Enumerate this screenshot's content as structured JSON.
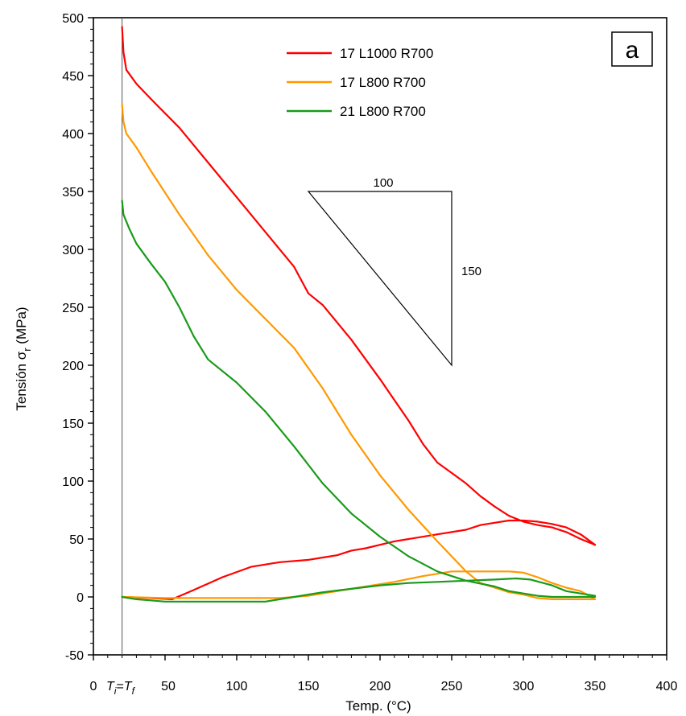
{
  "chart_data": {
    "type": "line",
    "panel_label": "a",
    "xlabel": "Temp. (°C)",
    "ylabel_main": "Tensión σ",
    "ylabel_sub": "r",
    "ylabel_unit": "(MPa)",
    "xlim": [
      0,
      400
    ],
    "ylim": [
      -50,
      500
    ],
    "xticks": [
      0,
      50,
      100,
      150,
      200,
      250,
      300,
      350,
      400
    ],
    "yticks": [
      -50,
      0,
      50,
      100,
      150,
      200,
      250,
      300,
      350,
      400,
      450,
      500
    ],
    "x_special_label": {
      "x": 20,
      "ti": "T",
      "ti_sub": "i",
      "eq": "=",
      "tf": "T",
      "tf_sub": "f"
    },
    "reference_line_x": 20,
    "legend_position": "top-center",
    "series": [
      {
        "name": "17 L1000 R700",
        "color": "#ff0000",
        "cooling": [
          [
            20,
            492
          ],
          [
            21,
            470
          ],
          [
            23,
            455
          ],
          [
            30,
            443
          ],
          [
            40,
            430
          ],
          [
            60,
            405
          ],
          [
            80,
            375
          ],
          [
            100,
            345
          ],
          [
            120,
            315
          ],
          [
            140,
            285
          ],
          [
            150,
            262
          ],
          [
            160,
            252
          ],
          [
            170,
            237
          ],
          [
            180,
            222
          ],
          [
            190,
            205
          ],
          [
            200,
            188
          ],
          [
            210,
            170
          ],
          [
            220,
            152
          ],
          [
            230,
            132
          ],
          [
            240,
            116
          ],
          [
            250,
            107
          ],
          [
            260,
            98
          ],
          [
            270,
            87
          ],
          [
            280,
            78
          ],
          [
            290,
            70
          ],
          [
            300,
            65
          ],
          [
            310,
            62
          ],
          [
            320,
            60
          ],
          [
            330,
            56
          ],
          [
            340,
            50
          ],
          [
            350,
            45
          ]
        ],
        "heating": [
          [
            20,
            0
          ],
          [
            40,
            -1
          ],
          [
            55,
            -2
          ],
          [
            70,
            6
          ],
          [
            90,
            17
          ],
          [
            110,
            26
          ],
          [
            130,
            30
          ],
          [
            150,
            32
          ],
          [
            160,
            34
          ],
          [
            170,
            36
          ],
          [
            180,
            40
          ],
          [
            190,
            42
          ],
          [
            200,
            45
          ],
          [
            210,
            48
          ],
          [
            220,
            50
          ],
          [
            240,
            54
          ],
          [
            260,
            58
          ],
          [
            270,
            62
          ],
          [
            280,
            64
          ],
          [
            290,
            66
          ],
          [
            300,
            66
          ],
          [
            310,
            65
          ],
          [
            320,
            63
          ],
          [
            330,
            60
          ],
          [
            340,
            54
          ],
          [
            350,
            45
          ]
        ]
      },
      {
        "name": "17 L800 R700",
        "color": "#ff9900",
        "cooling": [
          [
            20,
            425
          ],
          [
            21,
            410
          ],
          [
            23,
            400
          ],
          [
            30,
            388
          ],
          [
            40,
            368
          ],
          [
            60,
            330
          ],
          [
            80,
            295
          ],
          [
            100,
            265
          ],
          [
            120,
            240
          ],
          [
            140,
            215
          ],
          [
            160,
            180
          ],
          [
            180,
            140
          ],
          [
            200,
            105
          ],
          [
            220,
            75
          ],
          [
            240,
            48
          ],
          [
            260,
            22
          ],
          [
            270,
            12
          ],
          [
            280,
            8
          ],
          [
            290,
            4
          ],
          [
            300,
            2
          ],
          [
            310,
            -1
          ],
          [
            320,
            -2
          ],
          [
            330,
            -2
          ],
          [
            340,
            -2
          ],
          [
            350,
            -2
          ]
        ],
        "heating": [
          [
            20,
            0
          ],
          [
            50,
            -1
          ],
          [
            100,
            -1
          ],
          [
            130,
            -1
          ],
          [
            150,
            1
          ],
          [
            170,
            5
          ],
          [
            190,
            9
          ],
          [
            210,
            13
          ],
          [
            230,
            18
          ],
          [
            250,
            22
          ],
          [
            270,
            22
          ],
          [
            290,
            22
          ],
          [
            300,
            21
          ],
          [
            310,
            17
          ],
          [
            320,
            12
          ],
          [
            330,
            8
          ],
          [
            340,
            5
          ],
          [
            350,
            -2
          ]
        ]
      },
      {
        "name": "21 L800 R700",
        "color": "#1a9a1a",
        "cooling": [
          [
            20,
            342
          ],
          [
            21,
            330
          ],
          [
            25,
            318
          ],
          [
            30,
            305
          ],
          [
            40,
            288
          ],
          [
            50,
            272
          ],
          [
            60,
            250
          ],
          [
            70,
            225
          ],
          [
            80,
            205
          ],
          [
            100,
            185
          ],
          [
            120,
            160
          ],
          [
            140,
            130
          ],
          [
            160,
            98
          ],
          [
            180,
            72
          ],
          [
            200,
            52
          ],
          [
            220,
            35
          ],
          [
            240,
            22
          ],
          [
            260,
            14
          ],
          [
            280,
            9
          ],
          [
            290,
            5
          ],
          [
            300,
            3
          ],
          [
            310,
            1
          ],
          [
            320,
            0
          ],
          [
            330,
            0
          ],
          [
            340,
            0
          ],
          [
            350,
            0
          ]
        ],
        "heating": [
          [
            20,
            0
          ],
          [
            30,
            -2
          ],
          [
            40,
            -3
          ],
          [
            50,
            -4
          ],
          [
            70,
            -4
          ],
          [
            100,
            -4
          ],
          [
            120,
            -4
          ],
          [
            140,
            0
          ],
          [
            160,
            4
          ],
          [
            180,
            7
          ],
          [
            200,
            10
          ],
          [
            220,
            12
          ],
          [
            240,
            13
          ],
          [
            260,
            14
          ],
          [
            280,
            15
          ],
          [
            295,
            16
          ],
          [
            305,
            15
          ],
          [
            320,
            10
          ],
          [
            330,
            5
          ],
          [
            340,
            3
          ],
          [
            350,
            1
          ]
        ]
      }
    ],
    "annotation": {
      "type": "slope-triangle",
      "horizontal_label": "100",
      "vertical_label": "150",
      "from": [
        150,
        350
      ],
      "to": [
        250,
        200
      ]
    }
  }
}
